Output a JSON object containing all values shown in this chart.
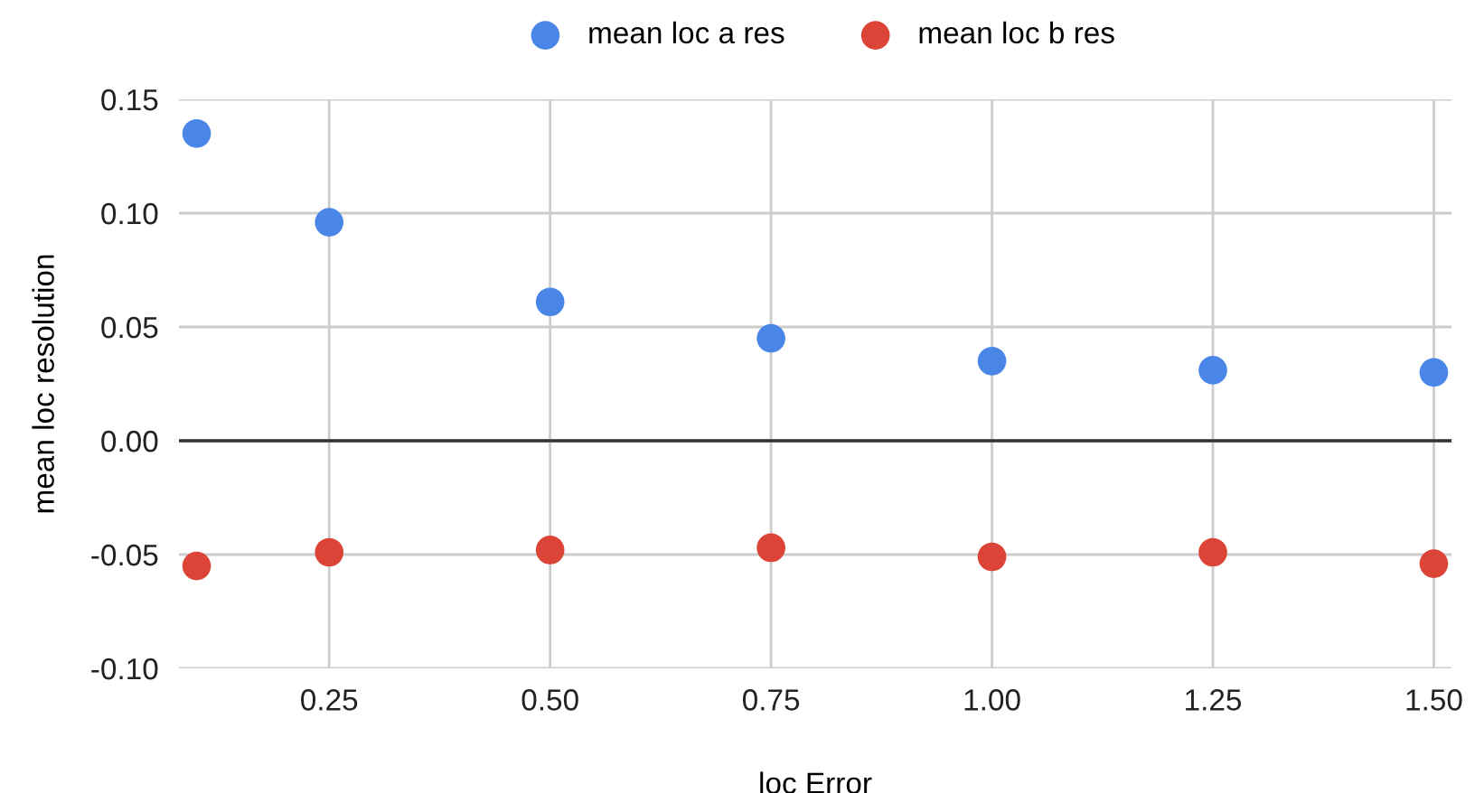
{
  "chart_data": {
    "type": "scatter",
    "xlabel": "loc Error",
    "ylabel": "mean loc resolution",
    "x": [
      0.1,
      0.25,
      0.5,
      0.75,
      1.0,
      1.25,
      1.5
    ],
    "series": [
      {
        "name": "mean loc a res",
        "color": "#4a86e8",
        "values": [
          0.135,
          0.096,
          0.061,
          0.045,
          0.035,
          0.031,
          0.03
        ]
      },
      {
        "name": "mean loc b res",
        "color": "#db4437",
        "values": [
          -0.055,
          -0.049,
          -0.048,
          -0.047,
          -0.051,
          -0.049,
          -0.054
        ]
      }
    ],
    "xlim": [
      0.08,
      1.52
    ],
    "xticks": [
      {
        "value": 0.25,
        "label": "0.25"
      },
      {
        "value": 0.5,
        "label": "0.50"
      },
      {
        "value": 0.75,
        "label": "0.75"
      },
      {
        "value": 1.0,
        "label": "1.00"
      },
      {
        "value": 1.25,
        "label": "1.25"
      },
      {
        "value": 1.5,
        "label": "1.50"
      }
    ],
    "ylim": [
      -0.1,
      0.15
    ],
    "yticks": [
      {
        "value": -0.1,
        "label": "-0.10"
      },
      {
        "value": -0.05,
        "label": "-0.05"
      },
      {
        "value": 0.0,
        "label": "0.00"
      },
      {
        "value": 0.05,
        "label": "0.05"
      },
      {
        "value": 0.1,
        "label": "0.10"
      },
      {
        "value": 0.15,
        "label": "0.15"
      }
    ],
    "ref_lines": [
      {
        "axis": "y",
        "value": 0,
        "color": "#333333"
      }
    ],
    "grid": true,
    "legend": "top",
    "marker": "circle"
  }
}
